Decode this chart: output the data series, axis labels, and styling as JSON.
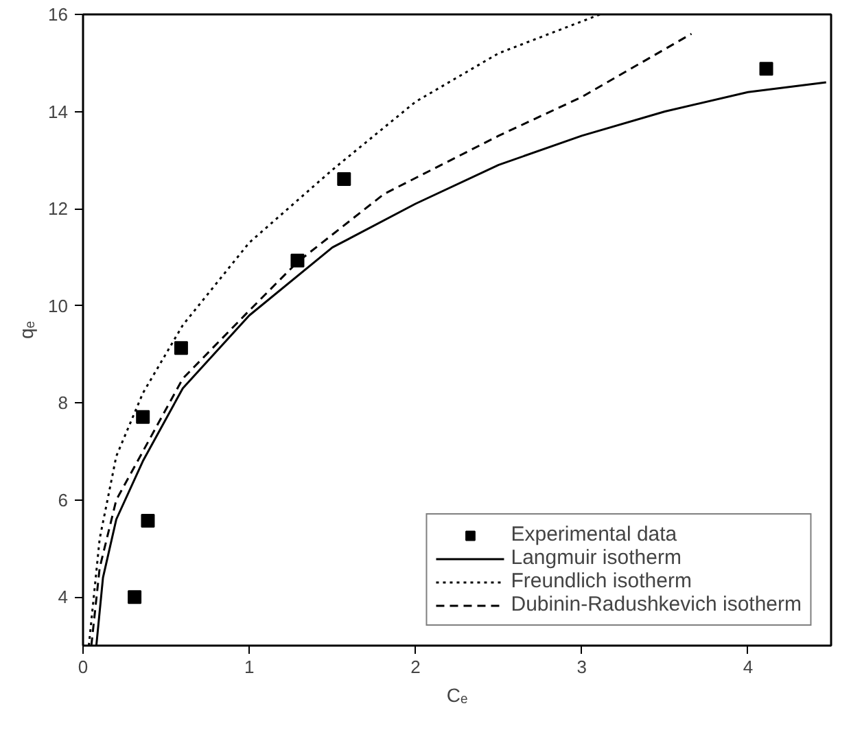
{
  "chart_data": {
    "type": "scatter",
    "xlabel": "Cₑ",
    "ylabel": "qₑ",
    "xlim": [
      0,
      4.5
    ],
    "ylim": [
      3,
      16
    ],
    "xticks": [
      0,
      1,
      2,
      3,
      4
    ],
    "yticks": [
      4,
      6,
      8,
      10,
      12,
      14,
      16
    ],
    "grid": false,
    "legend": "bottom right",
    "series": [
      {
        "name": "Experimental data",
        "marker": "square",
        "color": "#000000",
        "x": [
          0.31,
          0.36,
          0.39,
          0.59,
          1.29,
          1.57,
          4.11
        ],
        "values": [
          4.0,
          7.71,
          5.57,
          9.13,
          10.93,
          12.61,
          14.88
        ]
      },
      {
        "name": "Langmuir isotherm",
        "type": "line",
        "line_style": "solid",
        "color": "#000000",
        "x": [
          0.08,
          0.12,
          0.2,
          0.36,
          0.6,
          1,
          1.5,
          2,
          2.5,
          3,
          3.5,
          4,
          4.47
        ],
        "values": [
          3,
          4.4,
          5.6,
          6.8,
          8.3,
          9.8,
          11.2,
          12.1,
          12.9,
          13.5,
          14.0,
          14.4,
          14.6
        ]
      },
      {
        "name": "Freundlich isotherm",
        "type": "line",
        "line_style": "dotted",
        "color": "#000000",
        "x": [
          0.035,
          0.1,
          0.2,
          0.36,
          0.6,
          1,
          1.5,
          2,
          2.5,
          3.11
        ],
        "values": [
          3,
          5.2,
          6.9,
          8.2,
          9.6,
          11.3,
          12.8,
          14.2,
          15.2,
          16
        ]
      },
      {
        "name": "Dubinin-Radushkevich isotherm",
        "type": "line",
        "line_style": "dashed",
        "color": "#000000",
        "x": [
          0.05,
          0.1,
          0.2,
          0.36,
          0.6,
          1,
          1.29,
          1.81,
          2.5,
          3,
          3.66
        ],
        "values": [
          3,
          4.6,
          6.0,
          7.0,
          8.5,
          9.9,
          10.9,
          12.3,
          13.5,
          14.3,
          15.6
        ]
      }
    ]
  }
}
